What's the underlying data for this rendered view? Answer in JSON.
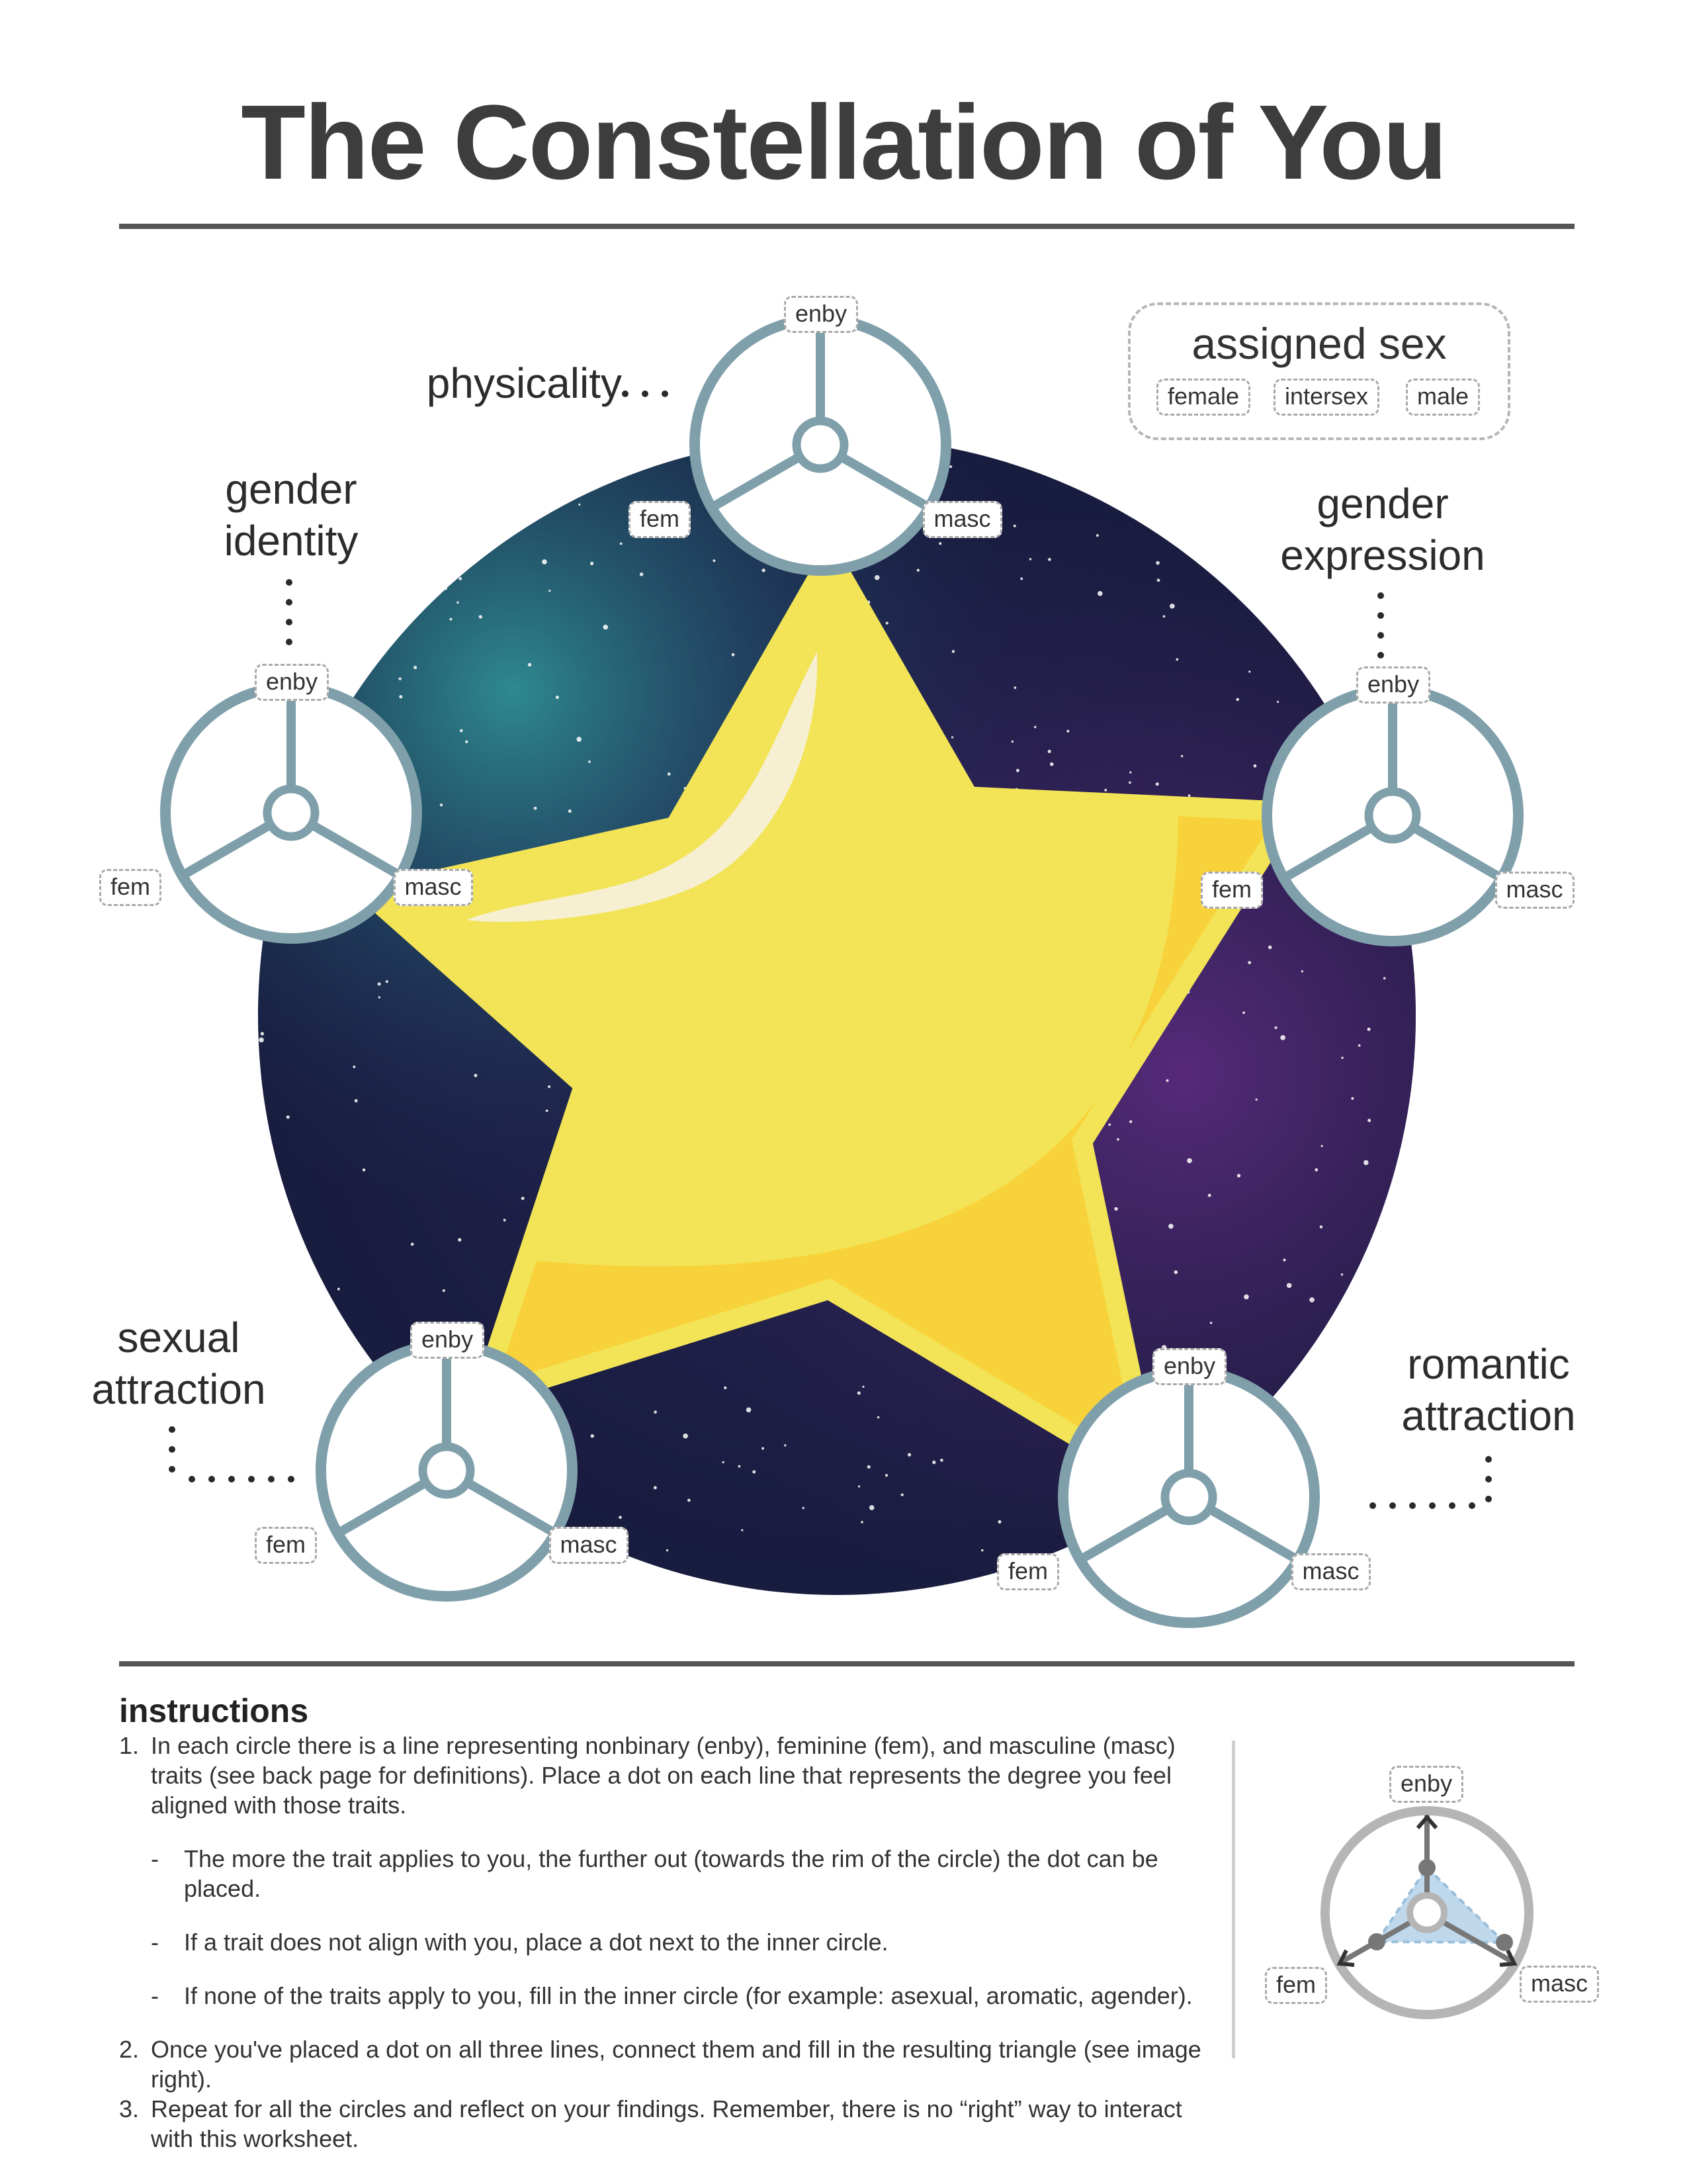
{
  "title": "The Constellation of You",
  "assigned_sex": {
    "title": "assigned sex",
    "options": [
      "female",
      "intersex",
      "male"
    ]
  },
  "axis_labels": {
    "enby": "enby",
    "fem": "fem",
    "masc": "masc"
  },
  "dimensions": {
    "physicality": "physicality",
    "gender_identity": [
      "gender",
      "identity"
    ],
    "gender_expression": [
      "gender",
      "expression"
    ],
    "sexual_attraction": [
      "sexual",
      "attraction"
    ],
    "romantic_attraction": [
      "romantic",
      "attraction"
    ]
  },
  "instructions": {
    "heading": "instructions",
    "step1_num": "1.",
    "step1": "In each circle there is a line representing nonbinary (enby), feminine (fem), and masculine (masc) traits (see back page for definitions). Place a dot on each line that represents the degree you feel aligned with those traits.",
    "dash": "-",
    "sub1": "The more the trait applies to you, the further out (towards the rim of the circle) the dot can be placed.",
    "sub2": "If a trait does not align with you, place a dot next to the inner circle.",
    "sub3": "If none of the traits apply to you, fill in the inner circle (for example: asexual, aromatic, agender).",
    "step2_num": "2.",
    "step2": "Once you've placed a dot on all three lines, connect them and fill in the resulting triangle (see image right).",
    "step3_num": "3.",
    "step3": "Repeat for all the circles and reflect on your findings. Remember, there is no “right” way to interact with this worksheet."
  },
  "colors": {
    "wheel": "#7f9faa",
    "star": "#f2e456",
    "star_shade": "#f8d23a",
    "galaxy_dark": "#1a1f3f",
    "example_fill": "#b9d4ea"
  }
}
